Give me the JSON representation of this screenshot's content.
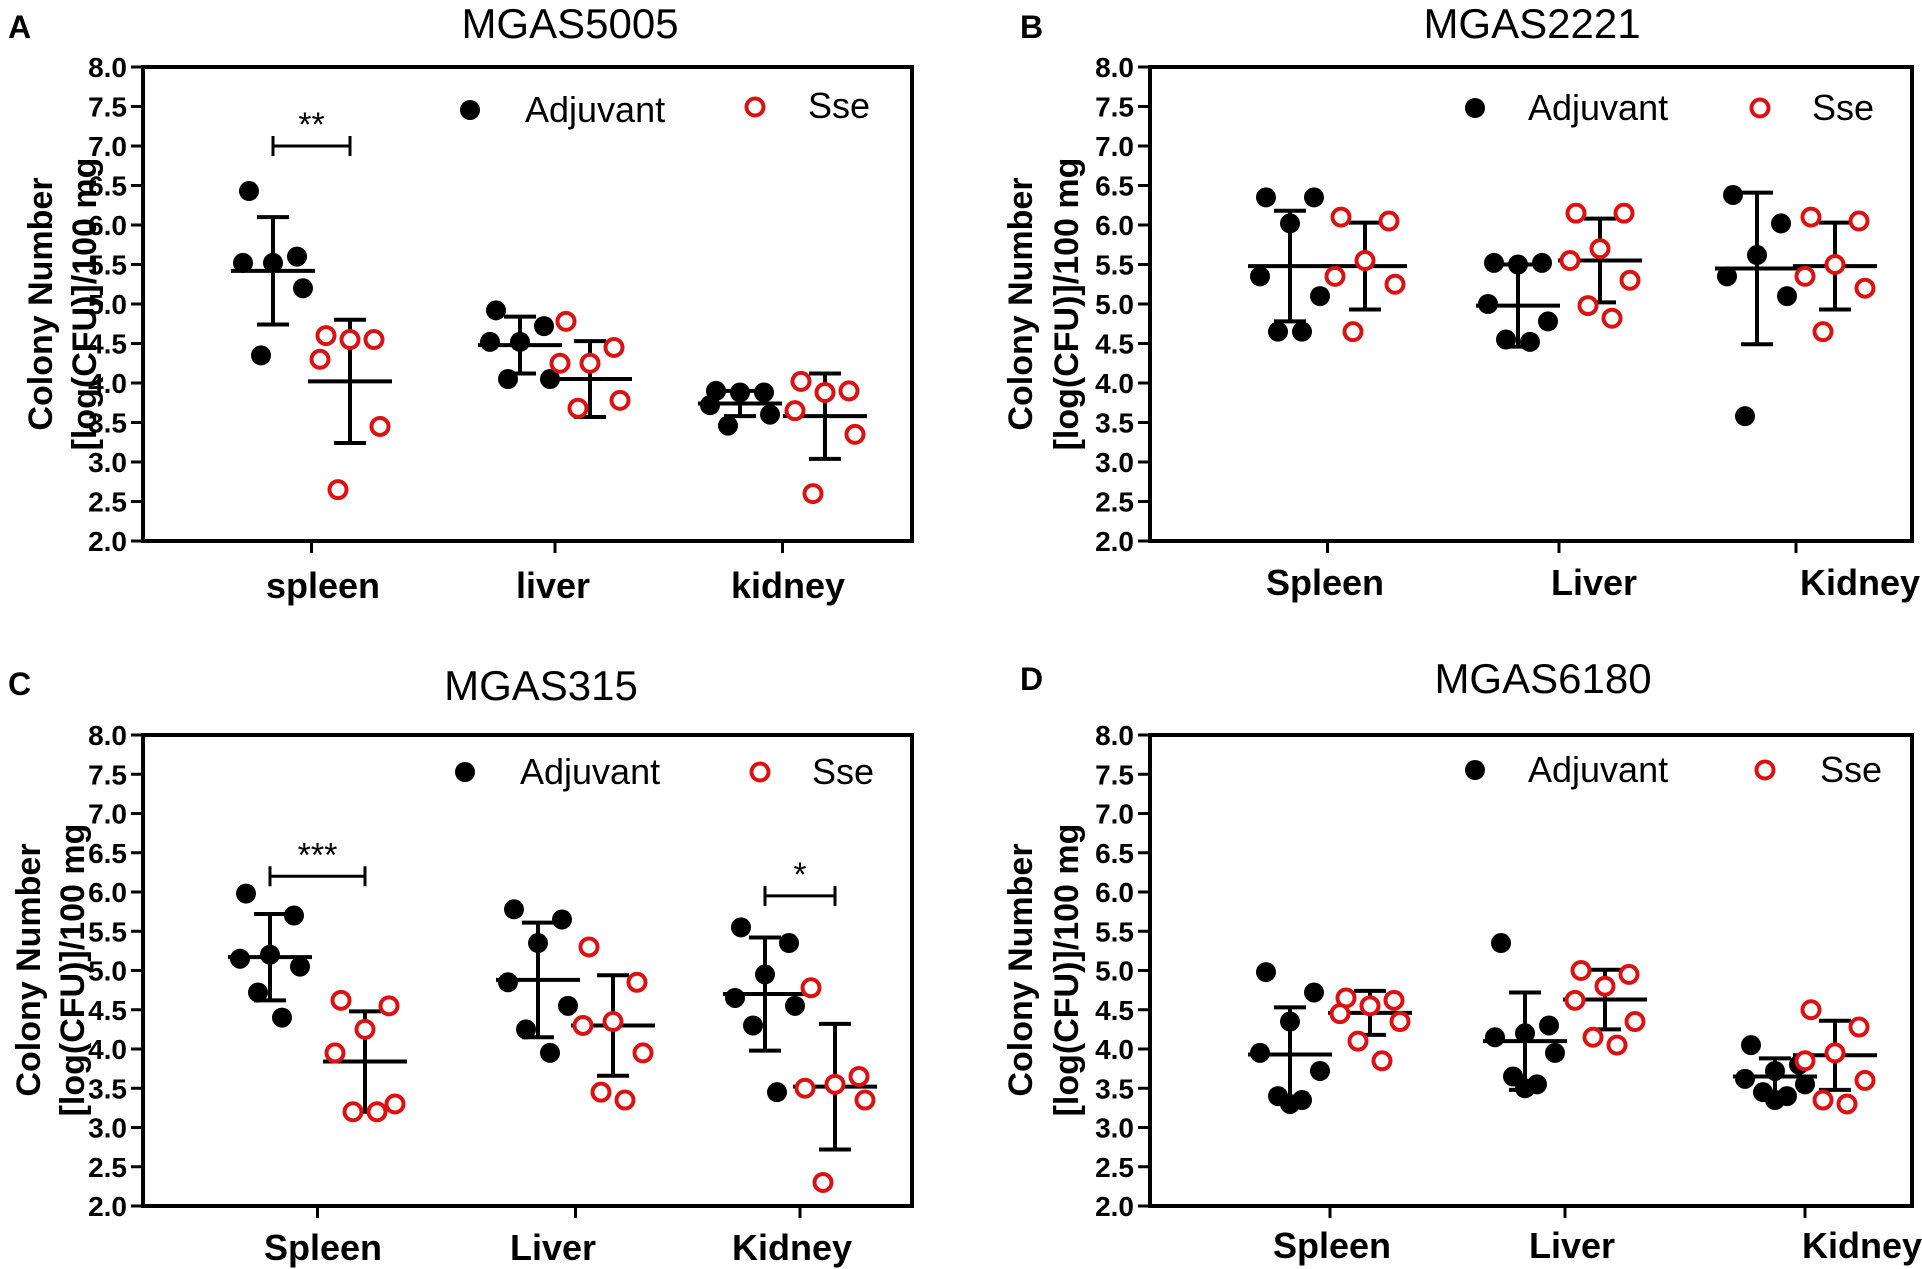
{
  "colors": {
    "adjuvant": "#000000",
    "sse": "#dd1111",
    "axis": "#000000"
  },
  "chart_data": [
    {
      "panel": "A",
      "type": "scatter",
      "title": "MGAS5005",
      "ylabel": [
        "Colony Number",
        "[log(CFU)]/100 mg"
      ],
      "ylim": [
        2.0,
        8.0
      ],
      "yticks": [
        "2.0",
        "2.5",
        "3.0",
        "3.5",
        "4.0",
        "4.5",
        "5.0",
        "5.5",
        "6.0",
        "6.5",
        "7.0",
        "7.5",
        "8.0"
      ],
      "categories": [
        "spleen",
        "liver",
        "kidney"
      ],
      "legend": [
        "Adjuvant",
        "Sse"
      ],
      "series": [
        {
          "name": "Adjuvant",
          "marker": "filled",
          "points": [
            [
              6.43,
              5.6,
              5.52,
              5.52,
              5.2,
              4.35
            ],
            [
              4.92,
              4.72,
              4.52,
              4.52,
              4.05,
              4.05
            ],
            [
              3.9,
              3.88,
              3.88,
              3.72,
              3.6,
              3.46
            ]
          ],
          "mean": [
            5.42,
            4.48,
            3.74
          ],
          "sd": [
            0.68,
            0.36,
            0.16
          ]
        },
        {
          "name": "Sse",
          "marker": "open",
          "points": [
            [
              4.6,
              4.55,
              4.55,
              4.3,
              3.45,
              2.65
            ],
            [
              4.78,
              4.45,
              4.25,
              4.25,
              3.78,
              3.68
            ],
            [
              4.02,
              3.9,
              3.88,
              3.65,
              3.35,
              2.6
            ]
          ],
          "mean": [
            4.02,
            4.05,
            3.58
          ],
          "sd": [
            0.78,
            0.48,
            0.54
          ]
        }
      ],
      "significance": [
        {
          "category": "spleen",
          "label": "**",
          "y": 7.0
        }
      ]
    },
    {
      "panel": "B",
      "type": "scatter",
      "title": "MGAS2221",
      "ylabel": [
        "Colony Number",
        "[log(CFU)]/100 mg"
      ],
      "ylim": [
        2.0,
        8.0
      ],
      "yticks": [
        "2.0",
        "2.5",
        "3.0",
        "3.5",
        "4.0",
        "4.5",
        "5.0",
        "5.5",
        "6.0",
        "6.5",
        "7.0",
        "7.5",
        "8.0"
      ],
      "categories": [
        "Spleen",
        "Liver",
        "Kidney"
      ],
      "legend": [
        "Adjuvant",
        "Sse"
      ],
      "series": [
        {
          "name": "Adjuvant",
          "marker": "filled",
          "points": [
            [
              6.35,
              6.35,
              6.02,
              5.35,
              5.1,
              4.65,
              4.65
            ],
            [
              5.52,
              5.52,
              5.5,
              5.0,
              4.78,
              4.55,
              4.52
            ],
            [
              6.38,
              6.02,
              5.62,
              5.35,
              5.1,
              3.58
            ]
          ],
          "mean": [
            5.48,
            4.98,
            5.45
          ],
          "sd": [
            0.7,
            0.52,
            0.96
          ]
        },
        {
          "name": "Sse",
          "marker": "open",
          "points": [
            [
              6.1,
              6.05,
              5.55,
              5.35,
              5.25,
              4.65
            ],
            [
              6.15,
              6.15,
              5.7,
              5.55,
              5.3,
              4.98,
              4.82
            ],
            [
              6.1,
              6.05,
              5.5,
              5.35,
              5.2,
              4.65
            ]
          ],
          "mean": [
            5.48,
            5.55,
            5.48
          ],
          "sd": [
            0.55,
            0.53,
            0.55
          ]
        }
      ],
      "significance": []
    },
    {
      "panel": "C",
      "type": "scatter",
      "title": "MGAS315",
      "ylabel": [
        "Colony Number",
        "[log(CFU)]/100 mg"
      ],
      "ylim": [
        2.0,
        8.0
      ],
      "yticks": [
        "2.0",
        "2.5",
        "3.0",
        "3.5",
        "4.0",
        "4.5",
        "5.0",
        "5.5",
        "6.0",
        "6.5",
        "7.0",
        "7.5",
        "8.0"
      ],
      "categories": [
        "Spleen",
        "Liver",
        "Kidney"
      ],
      "legend": [
        "Adjuvant",
        "Sse"
      ],
      "series": [
        {
          "name": "Adjuvant",
          "marker": "filled",
          "points": [
            [
              5.98,
              5.7,
              5.2,
              5.15,
              5.05,
              4.72,
              4.4
            ],
            [
              5.78,
              5.65,
              5.35,
              4.85,
              4.55,
              4.25,
              3.95
            ],
            [
              5.55,
              5.35,
              4.95,
              4.65,
              4.55,
              4.3,
              3.45
            ]
          ],
          "mean": [
            5.17,
            4.88,
            4.7
          ],
          "sd": [
            0.55,
            0.73,
            0.72
          ]
        },
        {
          "name": "Sse",
          "marker": "open",
          "points": [
            [
              4.62,
              4.55,
              4.25,
              3.95,
              3.3,
              3.2,
              3.2
            ],
            [
              5.3,
              4.85,
              4.35,
              4.3,
              3.95,
              3.45,
              3.35
            ],
            [
              4.78,
              3.65,
              3.55,
              3.5,
              3.35,
              2.3
            ]
          ],
          "mean": [
            3.84,
            4.3,
            3.52
          ],
          "sd": [
            0.64,
            0.64,
            0.8
          ]
        }
      ],
      "significance": [
        {
          "category": "Spleen",
          "label": "***",
          "y": 6.2
        },
        {
          "category": "Kidney",
          "label": "*",
          "y": 5.95
        }
      ]
    },
    {
      "panel": "D",
      "type": "scatter",
      "title": "MGAS6180",
      "ylabel": [
        "Colony Number",
        "[log(CFU)]/100 mg"
      ],
      "ylim": [
        2.0,
        8.0
      ],
      "yticks": [
        "2.0",
        "2.5",
        "3.0",
        "3.5",
        "4.0",
        "4.5",
        "5.0",
        "5.5",
        "6.0",
        "6.5",
        "7.0",
        "7.5",
        "8.0"
      ],
      "categories": [
        "Spleen",
        "Liver",
        "Kidney"
      ],
      "legend": [
        "Adjuvant",
        "Sse"
      ],
      "series": [
        {
          "name": "Adjuvant",
          "marker": "filled",
          "points": [
            [
              4.98,
              4.72,
              4.35,
              3.95,
              3.72,
              3.4,
              3.35,
              3.3
            ],
            [
              5.35,
              4.3,
              4.2,
              4.15,
              3.95,
              3.65,
              3.55,
              3.5
            ],
            [
              4.05,
              3.8,
              3.72,
              3.62,
              3.55,
              3.45,
              3.4,
              3.35
            ]
          ],
          "mean": [
            3.93,
            4.1,
            3.65
          ],
          "sd": [
            0.6,
            0.62,
            0.23
          ]
        },
        {
          "name": "Sse",
          "marker": "open",
          "points": [
            [
              4.65,
              4.62,
              4.55,
              4.45,
              4.35,
              4.1,
              3.85
            ],
            [
              5.0,
              4.95,
              4.8,
              4.62,
              4.35,
              4.15,
              4.05
            ],
            [
              4.5,
              4.28,
              3.95,
              3.85,
              3.6,
              3.35,
              3.3
            ]
          ],
          "mean": [
            4.46,
            4.63,
            3.92
          ],
          "sd": [
            0.28,
            0.38,
            0.44
          ]
        }
      ],
      "significance": []
    }
  ]
}
